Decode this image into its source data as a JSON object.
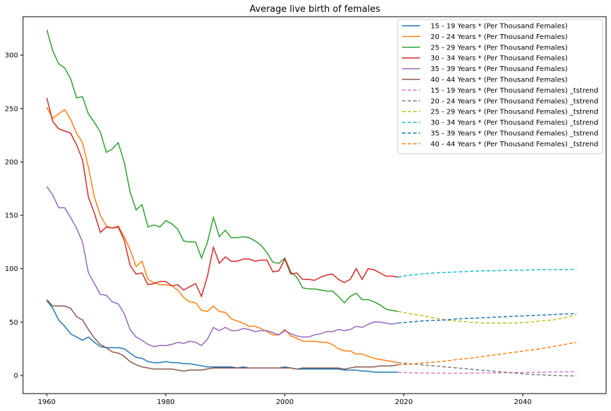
{
  "chart_data": {
    "type": "line",
    "title": "Average live birth of females",
    "xlabel": "",
    "ylabel": "",
    "xlim": [
      1956,
      2054
    ],
    "ylim": [
      -17,
      336
    ],
    "xticks": [
      1960,
      1980,
      2000,
      2020,
      2040
    ],
    "yticks": [
      0,
      50,
      100,
      150,
      200,
      250,
      300
    ],
    "grid": false,
    "legend_position": "top-right",
    "series": [
      {
        "name": "15 - 19 Years * (Per Thousand Females)",
        "color": "#1f77b4",
        "style": "solid",
        "x": [
          1960,
          1961,
          1962,
          1963,
          1964,
          1965,
          1966,
          1967,
          1968,
          1969,
          1970,
          1971,
          1972,
          1973,
          1974,
          1975,
          1976,
          1977,
          1978,
          1979,
          1980,
          1981,
          1982,
          1983,
          1984,
          1985,
          1986,
          1987,
          1988,
          1989,
          1990,
          1991,
          1992,
          1993,
          1994,
          1995,
          1996,
          1997,
          1998,
          1999,
          2000,
          2001,
          2002,
          2003,
          2004,
          2005,
          2006,
          2007,
          2008,
          2009,
          2010,
          2011,
          2012,
          2013,
          2014,
          2015,
          2016,
          2017,
          2018,
          2019
        ],
        "y": [
          70,
          63,
          52,
          46,
          39,
          36,
          33,
          36,
          31,
          27,
          26,
          26,
          26,
          25,
          21,
          17,
          16,
          13,
          12,
          12,
          13,
          12,
          12,
          11,
          11,
          10,
          9,
          8,
          8,
          8,
          8,
          8,
          7,
          8,
          7,
          7,
          7,
          7,
          7,
          7,
          8,
          7,
          6,
          6,
          6,
          6,
          6,
          6,
          6,
          6,
          5,
          5,
          5,
          4,
          4,
          3,
          3,
          3,
          3,
          3
        ]
      },
      {
        "name": "20 - 24 Years * (Per Thousand Females)",
        "color": "#ff7f0e",
        "style": "solid",
        "x": [
          1960,
          1961,
          1962,
          1963,
          1964,
          1965,
          1966,
          1967,
          1968,
          1969,
          1970,
          1971,
          1972,
          1973,
          1974,
          1975,
          1976,
          1977,
          1978,
          1979,
          1980,
          1981,
          1982,
          1983,
          1984,
          1985,
          1986,
          1987,
          1988,
          1989,
          1990,
          1991,
          1992,
          1993,
          1994,
          1995,
          1996,
          1997,
          1998,
          1999,
          2000,
          2001,
          2002,
          2003,
          2004,
          2005,
          2006,
          2007,
          2008,
          2009,
          2010,
          2011,
          2012,
          2013,
          2014,
          2015,
          2016,
          2017,
          2018,
          2019
        ],
        "y": [
          251,
          241,
          245,
          249,
          240,
          227,
          218,
          195,
          167,
          150,
          140,
          138,
          140,
          130,
          118,
          102,
          107,
          90,
          87,
          85,
          85,
          84,
          80,
          73,
          69,
          68,
          61,
          60,
          65,
          60,
          59,
          53,
          51,
          49,
          46,
          46,
          44,
          41,
          38,
          38,
          43,
          37,
          35,
          32,
          32,
          32,
          31,
          31,
          29,
          25,
          23,
          23,
          20,
          20,
          18,
          16,
          15,
          14,
          13,
          12
        ]
      },
      {
        "name": "25 - 29 Years * (Per Thousand Females)",
        "color": "#2ca02c",
        "style": "solid",
        "x": [
          1960,
          1961,
          1962,
          1963,
          1964,
          1965,
          1966,
          1967,
          1968,
          1969,
          1970,
          1971,
          1972,
          1973,
          1974,
          1975,
          1976,
          1977,
          1978,
          1979,
          1980,
          1981,
          1982,
          1983,
          1984,
          1985,
          1986,
          1987,
          1988,
          1989,
          1990,
          1991,
          1992,
          1993,
          1994,
          1995,
          1996,
          1997,
          1998,
          1999,
          2000,
          2001,
          2002,
          2003,
          2004,
          2005,
          2006,
          2007,
          2008,
          2009,
          2010,
          2011,
          2012,
          2013,
          2014,
          2015,
          2016,
          2017,
          2018,
          2019
        ],
        "y": [
          324,
          304,
          292,
          288,
          278,
          260,
          261,
          245,
          237,
          228,
          209,
          212,
          218,
          200,
          172,
          155,
          160,
          139,
          141,
          139,
          145,
          142,
          137,
          126,
          125,
          125,
          110,
          125,
          148,
          130,
          136,
          129,
          129,
          130,
          129,
          126,
          122,
          115,
          106,
          105,
          110,
          97,
          92,
          82,
          81,
          81,
          80,
          79,
          79,
          74,
          68,
          74,
          77,
          71,
          71,
          69,
          66,
          62,
          61,
          60
        ]
      },
      {
        "name": "30 - 34 Years * (Per Thousand Females)",
        "color": "#d62728",
        "style": "solid",
        "x": [
          1960,
          1961,
          1962,
          1963,
          1964,
          1965,
          1966,
          1967,
          1968,
          1969,
          1970,
          1971,
          1972,
          1973,
          1974,
          1975,
          1976,
          1977,
          1978,
          1979,
          1980,
          1981,
          1982,
          1983,
          1984,
          1985,
          1986,
          1987,
          1988,
          1989,
          1990,
          1991,
          1992,
          1993,
          1994,
          1995,
          1996,
          1997,
          1998,
          1999,
          2000,
          2001,
          2002,
          2003,
          2004,
          2005,
          2006,
          2007,
          2008,
          2009,
          2010,
          2011,
          2012,
          2013,
          2014,
          2015,
          2016,
          2017,
          2018,
          2019
        ],
        "y": [
          260,
          238,
          231,
          229,
          227,
          216,
          202,
          167,
          152,
          134,
          139,
          138,
          139,
          127,
          103,
          95,
          96,
          85,
          86,
          88,
          88,
          84,
          85,
          80,
          83,
          86,
          74,
          93,
          120,
          105,
          111,
          107,
          107,
          109,
          109,
          107,
          108,
          108,
          97,
          98,
          109,
          95,
          96,
          90,
          90,
          89,
          92,
          94,
          95,
          90,
          87,
          90,
          100,
          90,
          100,
          99,
          96,
          93,
          93,
          92
        ]
      },
      {
        "name": "35 - 39 Years * (Per Thousand Females)",
        "color": "#9467bd",
        "style": "solid",
        "x": [
          1960,
          1961,
          1962,
          1963,
          1964,
          1965,
          1966,
          1967,
          1968,
          1969,
          1970,
          1971,
          1972,
          1973,
          1974,
          1975,
          1976,
          1977,
          1978,
          1979,
          1980,
          1981,
          1982,
          1983,
          1984,
          1985,
          1986,
          1987,
          1988,
          1989,
          1990,
          1991,
          1992,
          1993,
          1994,
          1995,
          1996,
          1997,
          1998,
          1999,
          2000,
          2001,
          2002,
          2003,
          2004,
          2005,
          2006,
          2007,
          2008,
          2009,
          2010,
          2011,
          2012,
          2013,
          2014,
          2015,
          2016,
          2017,
          2018,
          2019
        ],
        "y": [
          177,
          169,
          157,
          157,
          148,
          138,
          125,
          96,
          86,
          76,
          75,
          69,
          67,
          58,
          43,
          36,
          33,
          29,
          27,
          28,
          28,
          29,
          31,
          30,
          32,
          31,
          28,
          34,
          45,
          42,
          45,
          42,
          42,
          44,
          43,
          41,
          42,
          42,
          40,
          38,
          42,
          39,
          37,
          36,
          36,
          38,
          39,
          41,
          41,
          43,
          42,
          43,
          46,
          45,
          48,
          50,
          50,
          49,
          48,
          49
        ]
      },
      {
        "name": "40 - 44 Years * (Per Thousand Females)",
        "color": "#8c564b",
        "style": "solid",
        "x": [
          1960,
          1961,
          1962,
          1963,
          1964,
          1965,
          1966,
          1967,
          1968,
          1969,
          1970,
          1971,
          1972,
          1973,
          1974,
          1975,
          1976,
          1977,
          1978,
          1979,
          1980,
          1981,
          1982,
          1983,
          1984,
          1985,
          1986,
          1987,
          1988,
          1989,
          1990,
          1991,
          1992,
          1993,
          1994,
          1995,
          1996,
          1997,
          1998,
          1999,
          2000,
          2001,
          2002,
          2003,
          2004,
          2005,
          2006,
          2007,
          2008,
          2009,
          2010,
          2011,
          2012,
          2013,
          2014,
          2015,
          2016,
          2017,
          2018,
          2019
        ],
        "y": [
          71,
          65,
          65,
          65,
          63,
          55,
          52,
          43,
          35,
          29,
          26,
          22,
          21,
          18,
          13,
          10,
          8,
          7,
          6,
          6,
          6,
          6,
          5,
          4,
          5,
          5,
          5,
          6,
          7,
          7,
          7,
          7,
          7,
          7,
          7,
          7,
          7,
          7,
          7,
          7,
          7,
          7,
          6,
          7,
          7,
          7,
          7,
          7,
          7,
          7,
          6,
          7,
          8,
          8,
          8,
          8,
          9,
          9,
          9,
          10
        ]
      },
      {
        "name": "15 - 19 Years * (Per Thousand Females) _tstrend",
        "color": "#e377c2",
        "style": "dashed",
        "x": [
          2019,
          2021,
          2023,
          2025,
          2027,
          2029,
          2031,
          2033,
          2035,
          2037,
          2039,
          2041,
          2043,
          2045,
          2047,
          2049
        ],
        "y": [
          3,
          2.6,
          2.3,
          2.2,
          2.1,
          2.1,
          2.2,
          2.3,
          2.4,
          2.5,
          2.7,
          2.9,
          3.0,
          3.2,
          3.4,
          3.5
        ]
      },
      {
        "name": "20 - 24 Years * (Per Thousand Females) _tstrend",
        "color": "#7f7f7f",
        "style": "dashed",
        "x": [
          2019,
          2021,
          2023,
          2025,
          2027,
          2029,
          2031,
          2033,
          2035,
          2037,
          2039,
          2041,
          2043,
          2045,
          2047,
          2049
        ],
        "y": [
          12,
          11,
          10,
          9,
          8,
          7,
          6,
          5,
          4,
          3,
          2,
          1,
          0.5,
          0,
          -0.3,
          -0.5
        ]
      },
      {
        "name": "25 - 29 Years * (Per Thousand Females) _tstrend",
        "color": "#bcbd22",
        "style": "dashed",
        "x": [
          2019,
          2021,
          2023,
          2025,
          2027,
          2029,
          2031,
          2033,
          2035,
          2037,
          2039,
          2041,
          2043,
          2045,
          2047,
          2049
        ],
        "y": [
          60,
          58,
          56,
          54,
          52,
          51,
          50,
          49,
          49,
          49,
          49,
          50,
          51,
          52,
          54,
          57
        ]
      },
      {
        "name": "30 - 34 Years * (Per Thousand Females) _tstrend",
        "color": "#17becf",
        "style": "dashed",
        "x": [
          2019,
          2021,
          2023,
          2025,
          2027,
          2029,
          2031,
          2033,
          2035,
          2037,
          2039,
          2041,
          2043,
          2045,
          2047,
          2049
        ],
        "y": [
          92,
          94,
          95,
          96,
          96.5,
          97,
          97.5,
          98,
          98,
          98.5,
          98.5,
          98.8,
          99,
          99,
          99.2,
          99.3
        ]
      },
      {
        "name": "35 - 39 Years * (Per Thousand Females) _tstrend",
        "color": "#1f77b4",
        "style": "dashed",
        "x": [
          2019,
          2021,
          2023,
          2025,
          2027,
          2029,
          2031,
          2033,
          2035,
          2037,
          2039,
          2041,
          2043,
          2045,
          2047,
          2049
        ],
        "y": [
          49,
          50,
          51,
          51.5,
          52,
          53,
          53.5,
          54,
          54.5,
          55,
          55.5,
          56,
          56.5,
          57,
          57.5,
          58
        ]
      },
      {
        "name": "40 - 44 Years * (Per Thousand Females) _tstrend",
        "color": "#ff7f0e",
        "style": "dashed",
        "x": [
          2019,
          2021,
          2023,
          2025,
          2027,
          2029,
          2031,
          2033,
          2035,
          2037,
          2039,
          2041,
          2043,
          2045,
          2047,
          2049
        ],
        "y": [
          10,
          10.5,
          11.5,
          12.5,
          13.5,
          15,
          16,
          17.5,
          19,
          20.5,
          22,
          23.5,
          25,
          27,
          29,
          31
        ]
      }
    ]
  }
}
